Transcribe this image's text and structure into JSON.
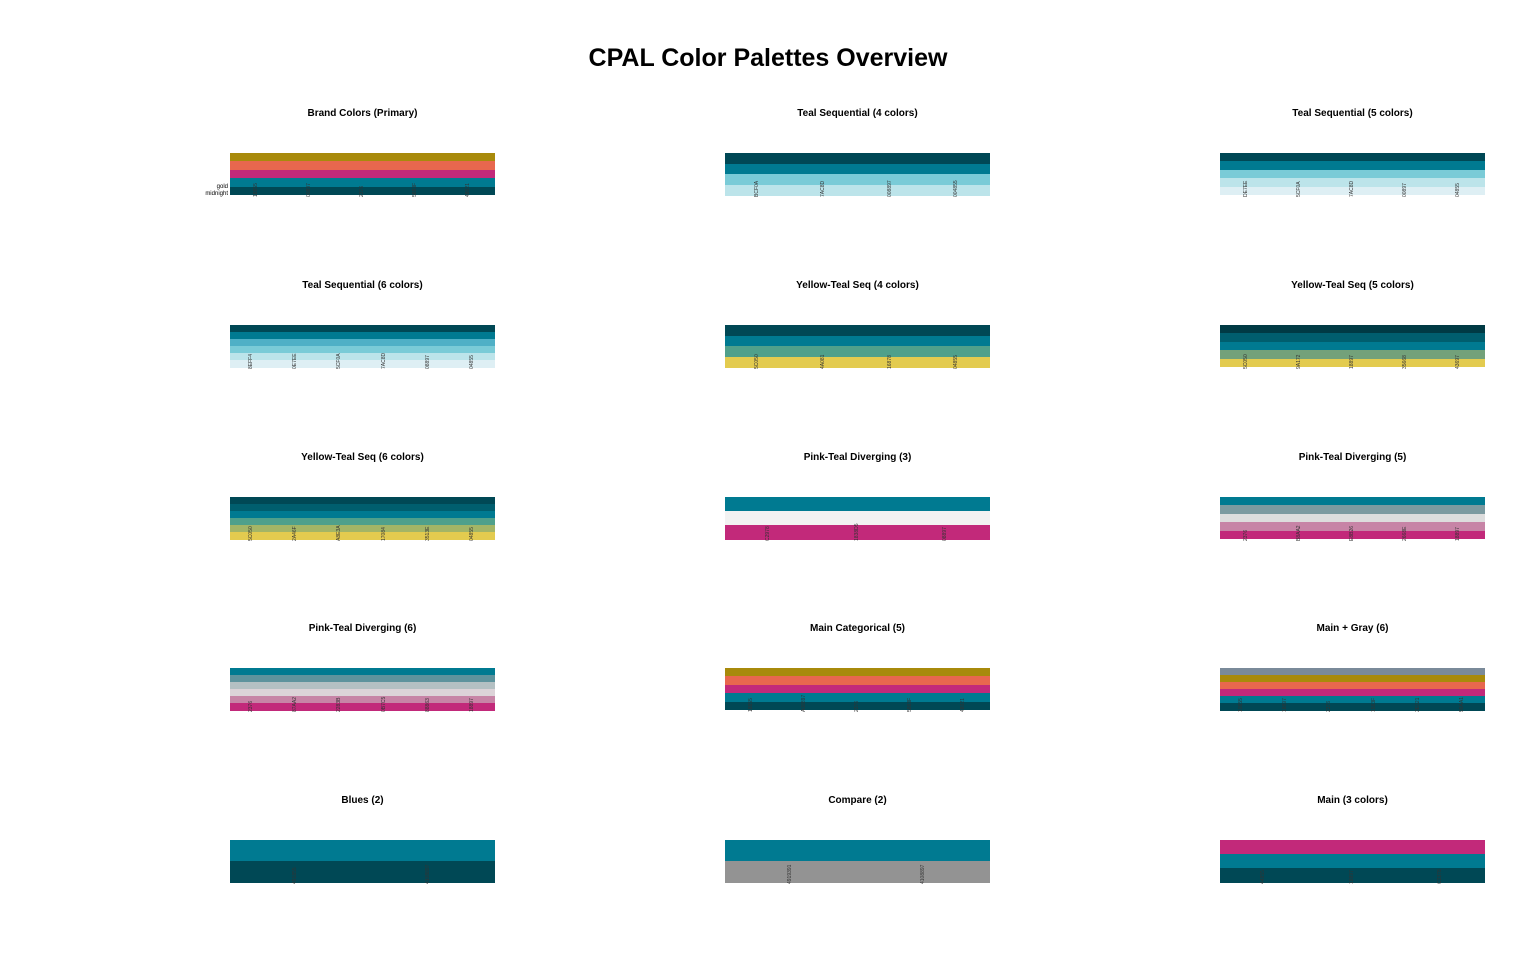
{
  "title": "CPAL Color Palettes Overview",
  "chart_data": [
    {
      "type": "palette",
      "title": "Brand Colors (Primary)",
      "colors": [
        "#A88A0B",
        "#E8674E",
        "#C2297A",
        "#007A91",
        "#004855"
      ],
      "hex_labels": [
        "18855",
        "00897",
        "2376",
        "5883F",
        "48021"
      ],
      "row_labels": [
        "gold",
        "midnight"
      ]
    },
    {
      "type": "palette",
      "title": "Teal Sequential (4 colors)",
      "colors": [
        "#004855",
        "#007A91",
        "#7ACBD7",
        "#BCE4EA"
      ],
      "hex_labels": [
        "BCF0A",
        "7AC8D",
        "008897",
        "004855"
      ]
    },
    {
      "type": "palette",
      "title": "Teal Sequential (5 colors)",
      "colors": [
        "#004855",
        "#007A91",
        "#7ACBD7",
        "#BCE4EA",
        "#DEEFF4"
      ],
      "hex_labels": [
        "DE7EE",
        "5CF0A",
        "7AC8D",
        "00897",
        "04855"
      ]
    },
    {
      "type": "palette",
      "title": "Teal Sequential (6 colors)",
      "colors": [
        "#004855",
        "#007A91",
        "#4FB0C6",
        "#7ACBD7",
        "#BCE4EA",
        "#DEEFF4"
      ],
      "hex_labels": [
        "8EFF4",
        "0E7EE",
        "5CF0A",
        "7AC8D",
        "08897",
        "04855"
      ]
    },
    {
      "type": "palette",
      "title": "Yellow-Teal Seq (4 colors)",
      "colors": [
        "#004855",
        "#007A91",
        "#4FA08B",
        "#E3CB4F"
      ],
      "hex_labels": [
        "5C050",
        "4A081",
        "16878",
        "04855"
      ]
    },
    {
      "type": "palette",
      "title": "Yellow-Teal Seq (5 colors)",
      "colors": [
        "#003A44",
        "#005E6E",
        "#007A91",
        "#73A17A",
        "#E3CB4F"
      ],
      "hex_labels": [
        "5C050",
        "9A172",
        "18897",
        "35668",
        "43697"
      ]
    },
    {
      "type": "palette",
      "title": "Yellow-Teal Seq (6 colors)",
      "colors": [
        "#004855",
        "#005E6E",
        "#007A91",
        "#4FA08B",
        "#A3B566",
        "#E3CB4F"
      ],
      "hex_labels": [
        "5C050",
        "2A46F",
        "A8E3A",
        "17084",
        "3513E",
        "04855"
      ]
    },
    {
      "type": "palette",
      "title": "Pink-Teal Diverging (3)",
      "colors": [
        "#007A91",
        "#F2F2F2",
        "#C2297A"
      ],
      "hex_labels": [
        "C2978",
        "1838D5",
        "08897"
      ]
    },
    {
      "type": "palette",
      "title": "Pink-Teal Diverging (5)",
      "colors": [
        "#007A91",
        "#7C9AA0",
        "#DDDDDD",
        "#C784A6",
        "#C2297A"
      ],
      "hex_labels": [
        "2376",
        "B8AA2",
        "E8B26",
        "2668E",
        "18897"
      ]
    },
    {
      "type": "palette",
      "title": "Pink-Teal Diverging (6)",
      "colors": [
        "#007A91",
        "#5E939D",
        "#B4C0C3",
        "#DCD3D8",
        "#C784A6",
        "#C2297A"
      ],
      "hex_labels": [
        "2376",
        "87AA2",
        "2283B",
        "0B7C5",
        "88863",
        "18897"
      ]
    },
    {
      "type": "palette",
      "title": "Main Categorical (5)",
      "colors": [
        "#A88A0B",
        "#E8674E",
        "#C2297A",
        "#007A91",
        "#004855"
      ],
      "hex_labels": [
        "18855",
        "A08897",
        "2376",
        "5883F",
        "48021"
      ]
    },
    {
      "type": "palette",
      "title": "Main + Gray (6)",
      "colors": [
        "#7A8A99",
        "#A88A0B",
        "#E8674E",
        "#C2297A",
        "#007A91",
        "#004855"
      ],
      "hex_labels": [
        "10855",
        "18897",
        "2376",
        "1583F",
        "3E021",
        "99AA1"
      ]
    },
    {
      "type": "palette",
      "title": "Blues (2)",
      "colors": [
        "#007A91",
        "#004855"
      ],
      "hex_labels": [
        "491855",
        "4108897"
      ]
    },
    {
      "type": "palette",
      "title": "Compare (2)",
      "colors": [
        "#007A91",
        "#939393"
      ],
      "hex_labels": [
        "4919391",
        "4108897"
      ]
    },
    {
      "type": "palette",
      "title": "Main (3 colors)",
      "colors": [
        "#C2297A",
        "#007A91",
        "#004855"
      ],
      "hex_labels": [
        "44855",
        "18897",
        "C2378"
      ]
    }
  ]
}
